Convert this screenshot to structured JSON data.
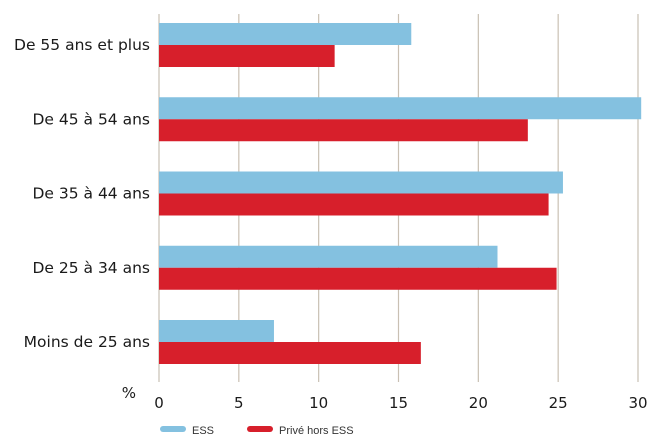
{
  "chart_data": {
    "type": "bar",
    "orientation": "horizontal",
    "categories": [
      "De 55 ans et plus",
      "De 45 à 54 ans",
      "De 35 à 44 ans",
      "De 25 à 34 ans",
      "Moins de 25 ans"
    ],
    "series": [
      {
        "name": "ESS",
        "color": "#84c1e0",
        "values": [
          15.8,
          30.2,
          25.3,
          21.2,
          7.2
        ]
      },
      {
        "name": "Privé hors ESS",
        "color": "#d71f2b",
        "values": [
          11.0,
          23.1,
          24.4,
          24.9,
          16.4
        ]
      }
    ],
    "xlim": [
      0,
      30
    ],
    "xticks": [
      0,
      5,
      10,
      15,
      20,
      25,
      30
    ],
    "unit_label": "%",
    "grid": "vertical",
    "grid_color": "#c9c0b3",
    "legend_position": "bottom-left"
  }
}
